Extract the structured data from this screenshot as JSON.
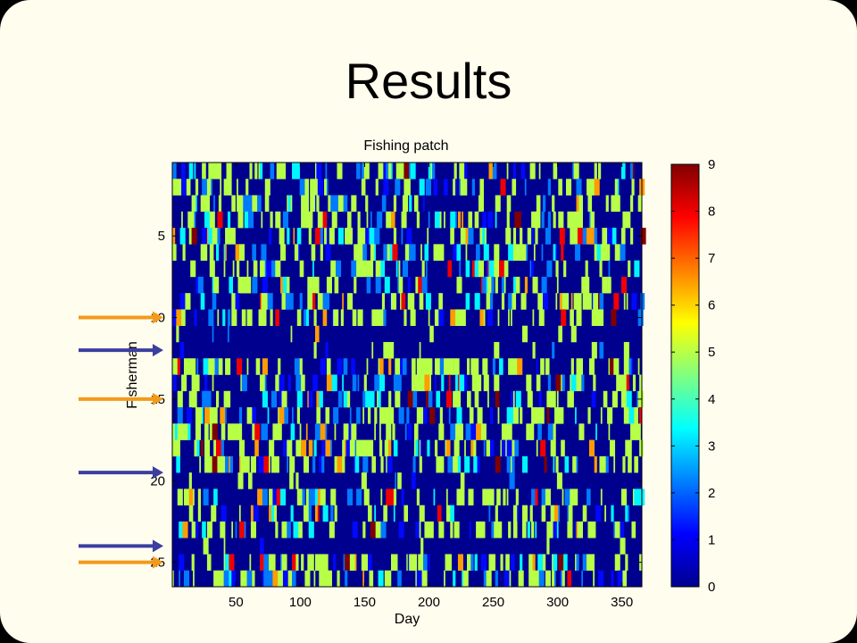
{
  "slide": {
    "title": "Results"
  },
  "chart_data": {
    "type": "heatmap",
    "title": "Fishing patch",
    "xlabel": "Day",
    "ylabel": "Fisherman",
    "x_ticks": [
      50,
      100,
      150,
      200,
      250,
      300,
      350
    ],
    "y_ticks": [
      5,
      10,
      15,
      20,
      25
    ],
    "xlim": [
      1,
      365
    ],
    "ylim": [
      1,
      26
    ],
    "n_rows": 26,
    "n_cols": 365,
    "colormap": "jet",
    "colorbar": {
      "min": 0,
      "max": 9,
      "ticks": [
        0,
        1,
        2,
        3,
        4,
        5,
        6,
        7,
        8,
        9
      ]
    },
    "row_levels_note_rows_mostly_zero": [
      11,
      12,
      20,
      24
    ],
    "arrows": [
      {
        "row": 9.5,
        "color": "#f39a1b"
      },
      {
        "row": 11.5,
        "color": "#3a3fa0"
      },
      {
        "row": 14.5,
        "color": "#f39a1b"
      },
      {
        "row": 19,
        "color": "#3a3fa0"
      },
      {
        "row": 23.5,
        "color": "#3a3fa0"
      },
      {
        "row": 24.5,
        "color": "#f39a1b"
      }
    ]
  }
}
